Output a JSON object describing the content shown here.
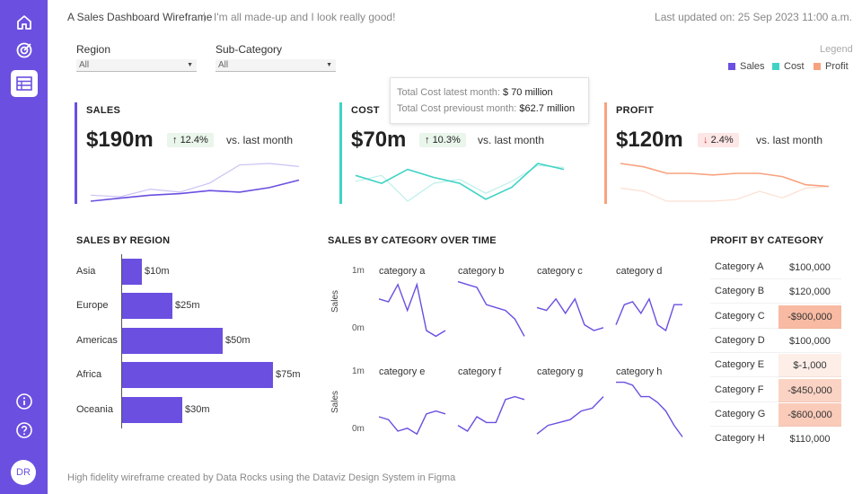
{
  "header": {
    "title": "A Sales Dashboard Wireframe",
    "separator": "|",
    "subtitle": "I'm all made-up and I look really good!",
    "updated": "Last updated on: 25 Sep 2023 11:00 a.m."
  },
  "sidebar": {
    "avatar": "DR"
  },
  "filters": {
    "region": {
      "label": "Region",
      "value": "All"
    },
    "subcategory": {
      "label": "Sub-Category",
      "value": "All"
    }
  },
  "legend": {
    "title": "Legend",
    "items": [
      {
        "label": "Sales",
        "color": "#6b4fe0"
      },
      {
        "label": "Cost",
        "color": "#3fd3c4"
      },
      {
        "label": "Profit",
        "color": "#f7a27e"
      }
    ]
  },
  "kpis": {
    "sales": {
      "title": "SALES",
      "value": "$190m",
      "change": "12.4%",
      "direction": "up",
      "vs": "vs. last month",
      "color": "#6b4fe0",
      "current": [
        10,
        12,
        14,
        15,
        17,
        16,
        19,
        24
      ],
      "previous": [
        14,
        13,
        18,
        16,
        22,
        34,
        35,
        33
      ]
    },
    "cost": {
      "title": "COST",
      "value": "$70m",
      "change": "10.3%",
      "direction": "up",
      "vs": "vs. last month",
      "color": "#3fd3c4",
      "current": [
        24,
        20,
        27,
        23,
        20,
        12,
        18,
        30,
        27
      ],
      "previous": [
        21,
        24,
        11,
        20,
        22,
        15,
        21,
        29,
        28
      ]
    },
    "profit": {
      "title": "PROFIT",
      "value": "$120m",
      "change": "2.4%",
      "direction": "down",
      "vs": "vs. last month",
      "color": "#f7a27e",
      "current": [
        40,
        38,
        34,
        34,
        33,
        34,
        34,
        32,
        27,
        26
      ],
      "previous": [
        25,
        23,
        17,
        17,
        17,
        18,
        23,
        19,
        25,
        26
      ]
    }
  },
  "tooltip": {
    "line1_label": "Total Cost latest month:",
    "line1_value": "$ 70 million",
    "line2_label": "Total Cost previoust month:",
    "line2_value": "$62.7 million"
  },
  "sections": {
    "sales_by_region": "SALES BY REGION",
    "sales_by_category": "SALES BY CATEGORY OVER TIME",
    "profit_by_category": "PROFIT BY CATEGORY"
  },
  "chart_data": [
    {
      "type": "bar",
      "title": "SALES BY REGION",
      "orientation": "horizontal",
      "categories": [
        "Asia",
        "Europe",
        "Americas",
        "Africa",
        "Oceania"
      ],
      "values": [
        10,
        25,
        50,
        75,
        30
      ],
      "labels": [
        "$10m",
        "$25m",
        "$50m",
        "$75m",
        "$30m"
      ],
      "unit": "$m",
      "xlim": [
        0,
        92
      ]
    },
    {
      "type": "line",
      "title": "SALES BY CATEGORY OVER TIME",
      "ylabel": "Sales",
      "yticks": [
        "1m",
        "0m"
      ],
      "ylim": [
        0,
        1
      ],
      "series": [
        {
          "name": "category a",
          "values": [
            0.55,
            0.5,
            0.8,
            0.35,
            0.8,
            0.0,
            -0.1,
            0.0
          ]
        },
        {
          "name": "category b",
          "values": [
            0.85,
            0.8,
            0.75,
            0.45,
            0.4,
            0.35,
            0.2,
            -0.1
          ]
        },
        {
          "name": "category c",
          "values": [
            0.4,
            0.35,
            0.55,
            0.3,
            0.55,
            0.1,
            0.0,
            0.05
          ]
        },
        {
          "name": "category d",
          "values": [
            0.1,
            0.45,
            0.5,
            0.3,
            0.55,
            0.1,
            0.0,
            0.45,
            0.45
          ]
        },
        {
          "name": "category e",
          "values": [
            0.25,
            0.2,
            0.0,
            0.05,
            -0.05,
            0.3,
            0.35,
            0.3
          ]
        },
        {
          "name": "category f",
          "values": [
            0.1,
            0.0,
            0.25,
            0.15,
            0.15,
            0.55,
            0.6,
            0.55
          ]
        },
        {
          "name": "category g",
          "values": [
            -0.05,
            0.1,
            0.15,
            0.2,
            0.35,
            0.4,
            0.6
          ]
        },
        {
          "name": "category h",
          "values": [
            0.85,
            0.85,
            0.8,
            0.6,
            0.6,
            0.5,
            0.35,
            0.1,
            -0.1
          ]
        }
      ]
    },
    {
      "type": "table",
      "title": "PROFIT BY CATEGORY",
      "rows": [
        {
          "category": "Category A",
          "value": "$100,000",
          "num": 100000
        },
        {
          "category": "Category B",
          "value": "$120,000",
          "num": 120000
        },
        {
          "category": "Category C",
          "value": "-$900,000",
          "num": -900000
        },
        {
          "category": "Category D",
          "value": "$100,000",
          "num": 100000
        },
        {
          "category": "Category E",
          "value": "$-1,000",
          "num": -1000
        },
        {
          "category": "Category F",
          "value": "-$450,000",
          "num": -450000
        },
        {
          "category": "Category G",
          "value": "-$600,000",
          "num": -600000
        },
        {
          "category": "Category H",
          "value": "$110,000",
          "num": 110000
        }
      ]
    }
  ],
  "footer": "High fidelity wireframe created by Data Rocks using the Dataviz Design System in Figma"
}
